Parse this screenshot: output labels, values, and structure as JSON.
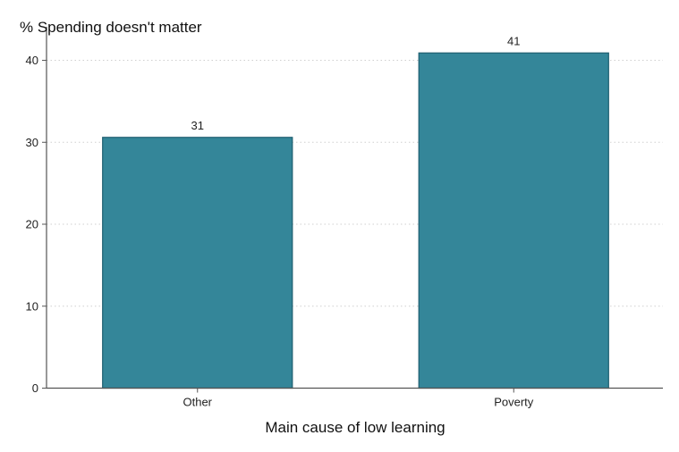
{
  "chart_data": {
    "type": "bar",
    "categories": [
      "Other",
      "Poverty"
    ],
    "values": [
      30.6,
      40.9
    ],
    "data_labels": [
      "31",
      "41"
    ],
    "title": "",
    "xlabel": "Main cause of low learning",
    "ylabel": "% Spending doesn't matter",
    "ylim": [
      0,
      43
    ],
    "yticks": [
      0,
      10,
      20,
      30,
      40
    ],
    "grid": true,
    "legend": "none",
    "colors": {
      "bar": "#348699",
      "bar_edge": "#1f5f70"
    }
  }
}
